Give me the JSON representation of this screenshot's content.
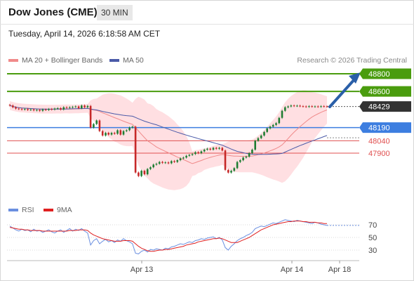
{
  "header": {
    "title": "Dow Jones (CME)",
    "timeframe": "30 MIN",
    "datetime": "Tuesday, April 14, 2026 6:18:58 AM CET"
  },
  "legend": {
    "ma20_label": "MA 20 + Bollinger Bands",
    "ma50_label": "MA 50",
    "credit": "Research © 2026 Trading Central",
    "rsi_label": "RSI",
    "ma9_label": "9MA"
  },
  "colors": {
    "candle_up": "#1e7d32",
    "candle_down": "#c62828",
    "ma20": "#f08a8a",
    "bollinger_fill": "#ffd9dd",
    "ma50": "#4a5aa8",
    "resistance": "#4a9c0e",
    "pivot": "#3d7ee0",
    "support": "#e05050",
    "current_price_bg": "#333333",
    "rsi": "#6a8fe0",
    "rsi_ma": "#e02020",
    "arrow": "#2a5fa8"
  },
  "chart_data": [
    {
      "type": "candlestick",
      "instrument": "Dow Jones (CME)",
      "timeframe": "30 MIN",
      "x_ticks": [
        "Apr 13",
        "Apr 14",
        "Apr 18"
      ],
      "y_range": [
        47850,
        48810
      ],
      "levels": [
        {
          "value": 48800,
          "label": "48800",
          "kind": "resistance"
        },
        {
          "value": 48600,
          "label": "48600",
          "kind": "resistance"
        },
        {
          "value": 48429,
          "label": "48429",
          "kind": "current"
        },
        {
          "value": 48190,
          "label": "48190",
          "kind": "pivot"
        },
        {
          "value": 48040,
          "label": "48040",
          "kind": "support"
        },
        {
          "value": 47900,
          "label": "47900",
          "kind": "support"
        }
      ],
      "closes": [
        48440,
        48420,
        48405,
        48400,
        48395,
        48400,
        48390,
        48395,
        48385,
        48390,
        48380,
        48395,
        48390,
        48400,
        48395,
        48405,
        48410,
        48395,
        48420,
        48415,
        48420,
        48425,
        48430,
        48410,
        48440,
        48420,
        48435,
        48190,
        48230,
        48270,
        48150,
        48100,
        48130,
        48110,
        48130,
        48120,
        48160,
        48110,
        48150,
        48160,
        48190,
        48200,
        47680,
        47640,
        47700,
        47660,
        47720,
        47740,
        47770,
        47780,
        47800,
        47790,
        47795,
        47785,
        47810,
        47800,
        47820,
        47840,
        47850,
        47870,
        47880,
        47890,
        47910,
        47900,
        47920,
        47940,
        47950,
        47940,
        47960,
        47950,
        47960,
        47930,
        47710,
        47680,
        47700,
        47730,
        47800,
        47820,
        47850,
        47860,
        47900,
        47940,
        48040,
        48070,
        48100,
        48140,
        48180,
        48200,
        48220,
        48240,
        48300,
        48380,
        48420,
        48430,
        48440,
        48435,
        48438,
        48432,
        48430,
        48426,
        48432,
        48428,
        48430,
        48426,
        48432,
        48430,
        48429
      ],
      "ma20_end": 48346,
      "ma50_end": 48074
    },
    {
      "type": "line",
      "name": "RSI",
      "levels": [
        70,
        50,
        30
      ],
      "series": [
        {
          "name": "RSI",
          "values": [
            68,
            65,
            62,
            60,
            63,
            61,
            62,
            59,
            63,
            60,
            61,
            58,
            60,
            62,
            59,
            57,
            60,
            62,
            58,
            61,
            64,
            60,
            63,
            61,
            64,
            60,
            57,
            38,
            45,
            48,
            40,
            44,
            47,
            43,
            45,
            42,
            46,
            44,
            48,
            45,
            43,
            40,
            25,
            24,
            28,
            30,
            27,
            31,
            30,
            32,
            31,
            30,
            33,
            32,
            35,
            36,
            38,
            40,
            39,
            41,
            43,
            42,
            45,
            46,
            48,
            47,
            49,
            50,
            51,
            48,
            50,
            46,
            34,
            30,
            36,
            40,
            45,
            48,
            50,
            53,
            55,
            58,
            64,
            66,
            68,
            67,
            69,
            71,
            73,
            72,
            74,
            76,
            78,
            77,
            76,
            75,
            77,
            76,
            75,
            74,
            73,
            72,
            74,
            73,
            71,
            70,
            69
          ]
        },
        {
          "name": "9MA",
          "values": [
            66,
            65,
            64,
            63,
            63,
            62,
            62,
            61,
            61,
            61,
            61,
            60,
            60,
            60,
            60,
            60,
            60,
            60,
            60,
            60,
            61,
            61,
            61,
            62,
            62,
            62,
            61,
            57,
            54,
            52,
            50,
            48,
            47,
            46,
            45,
            44,
            44,
            44,
            45,
            45,
            45,
            44,
            40,
            36,
            33,
            31,
            29,
            28,
            28,
            29,
            30,
            30,
            31,
            31,
            32,
            33,
            34,
            35,
            36,
            38,
            39,
            40,
            41,
            43,
            44,
            45,
            46,
            47,
            48,
            48,
            49,
            48,
            46,
            44,
            42,
            42,
            42,
            44,
            46,
            48,
            50,
            53,
            56,
            59,
            62,
            64,
            66,
            68,
            70,
            71,
            72,
            73,
            74,
            75,
            75,
            76,
            76,
            76,
            75,
            75,
            74,
            74,
            74,
            73,
            73,
            72,
            72
          ]
        }
      ]
    }
  ]
}
